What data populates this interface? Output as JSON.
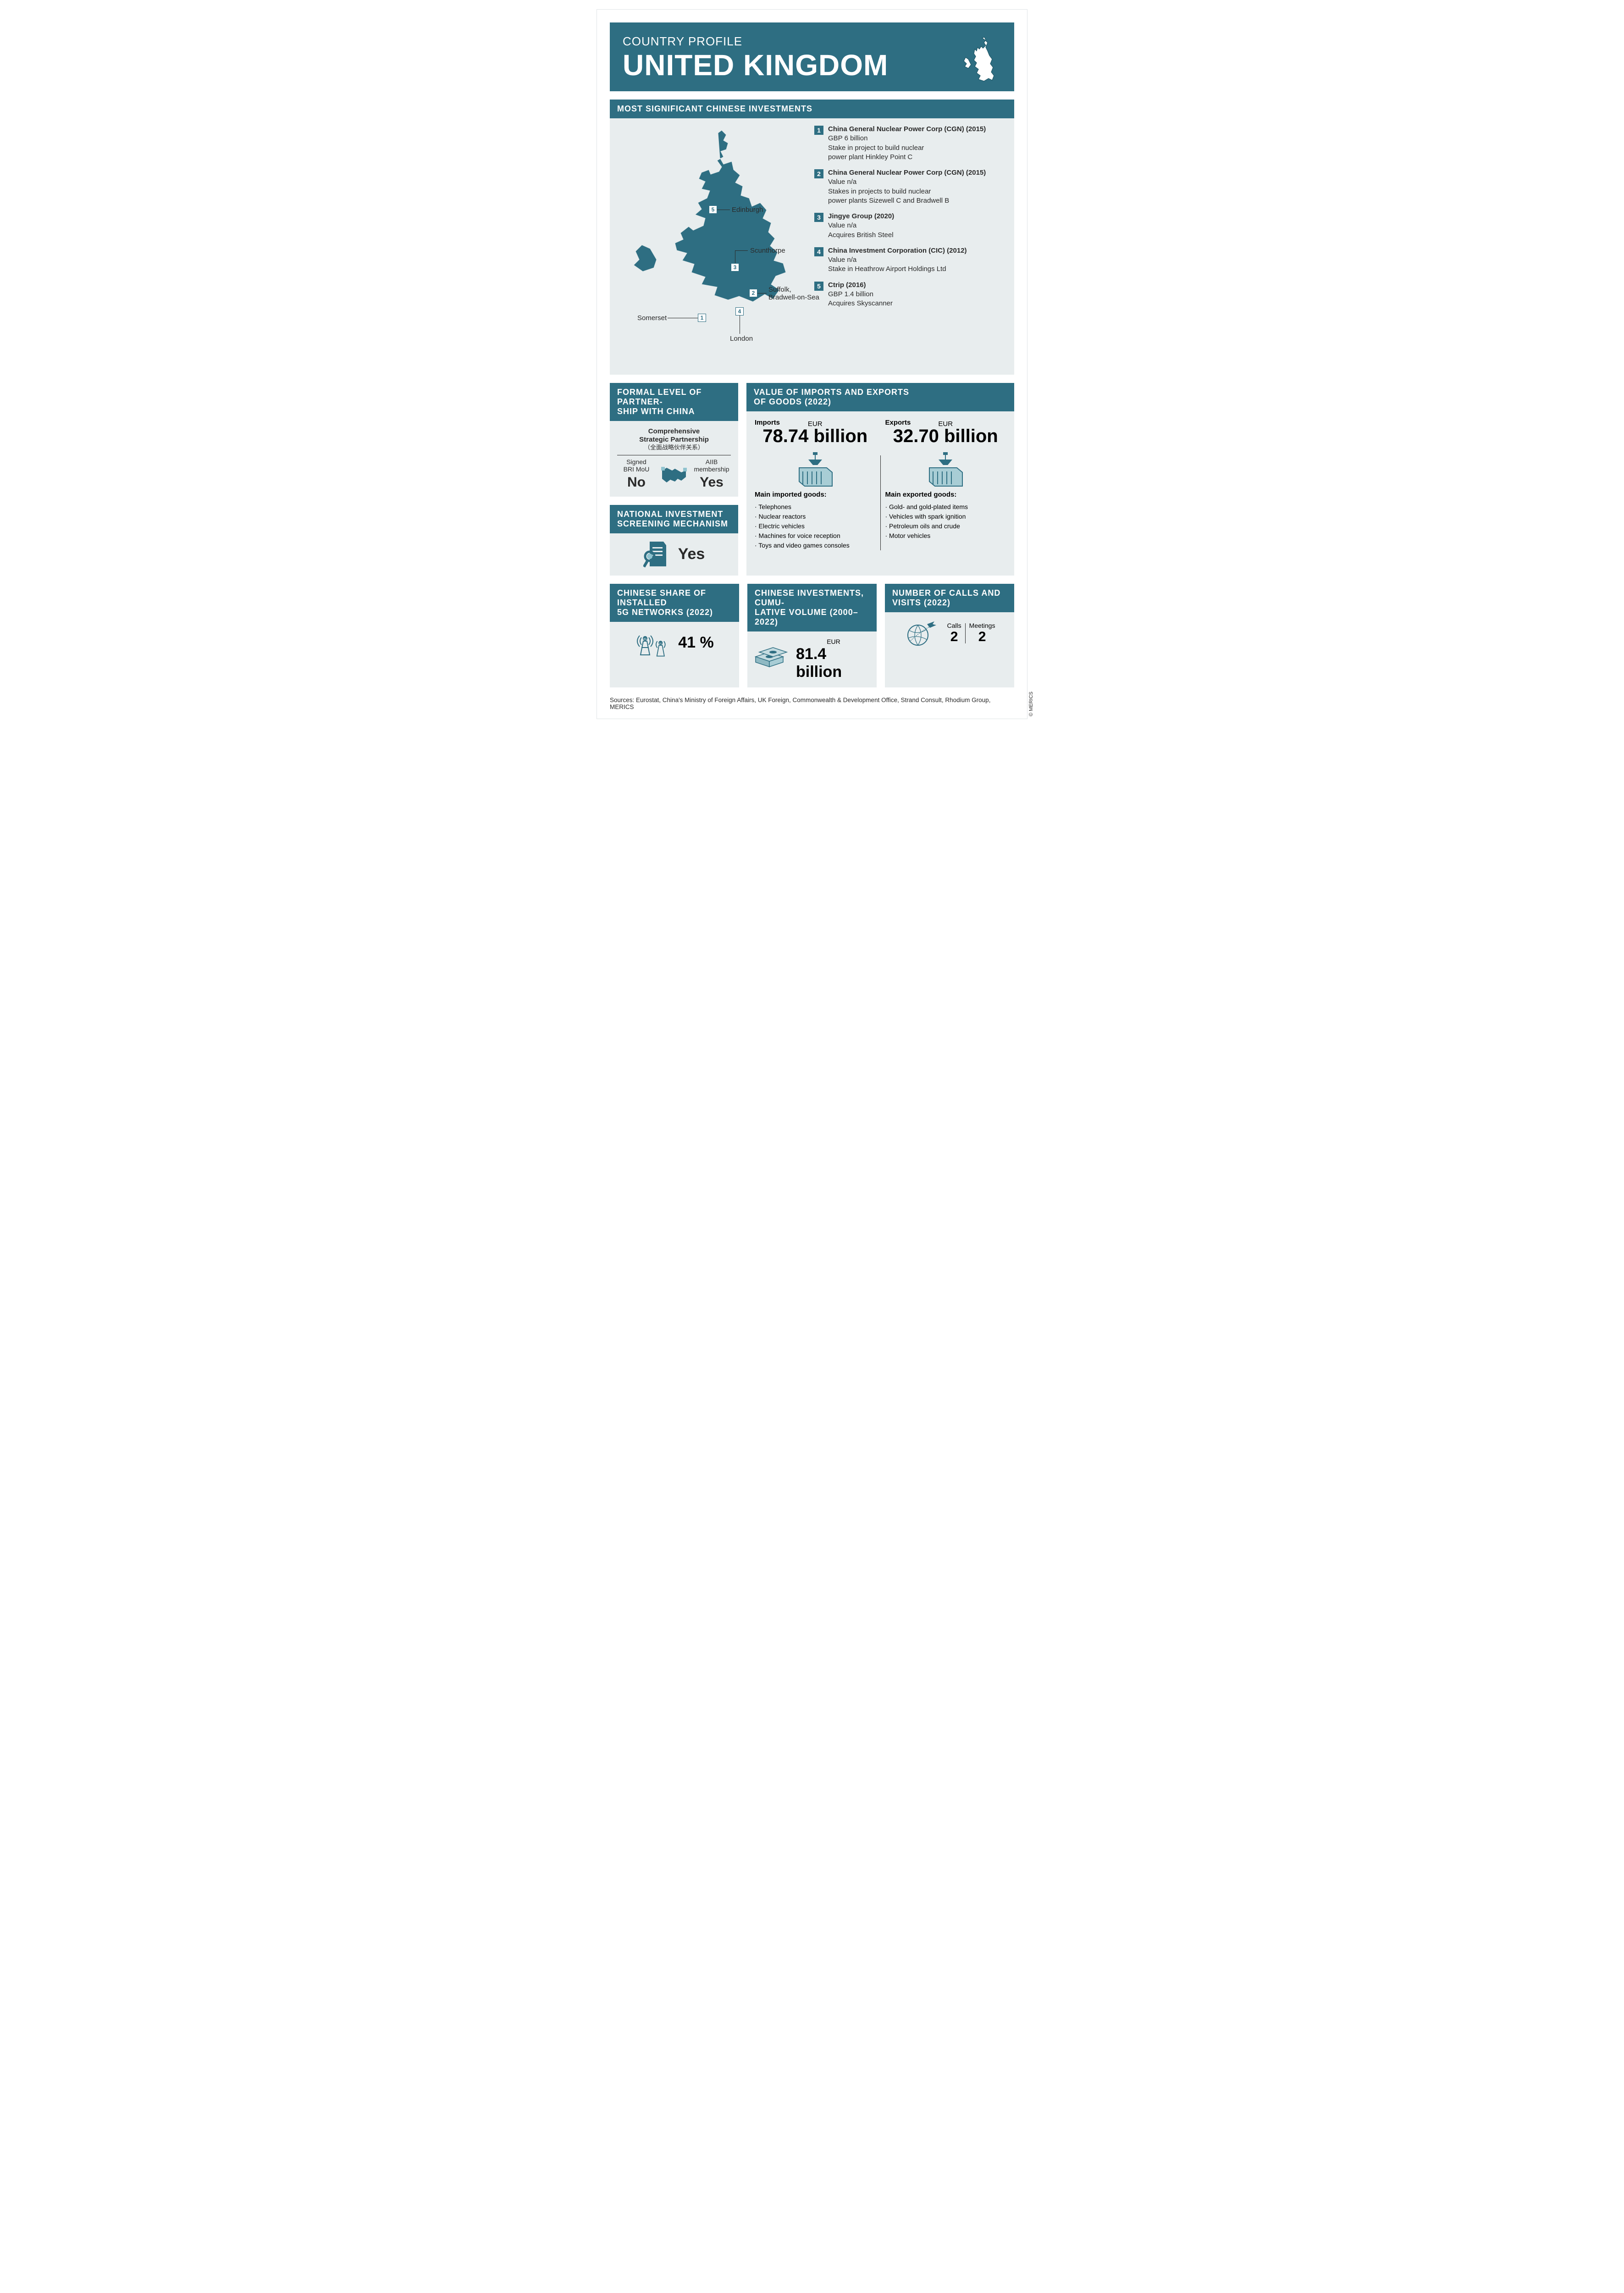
{
  "colors": {
    "primary": "#2e6e82",
    "panel": "#e8edee",
    "text": "#2a2a2a",
    "white": "#ffffff"
  },
  "header": {
    "kicker": "COUNTRY PROFILE",
    "country": "UNITED KINGDOM"
  },
  "investments": {
    "title": "MOST SIGNIFICANT CHINESE INVESTMENTS",
    "map_labels": [
      {
        "city": "Edinburgh"
      },
      {
        "city": "Scunthorpe"
      },
      {
        "city": "Suffolk,\nBradwell-on-Sea"
      },
      {
        "city": "London"
      },
      {
        "city": "Somerset"
      }
    ],
    "items": [
      {
        "num": "1",
        "title": "China General Nuclear Power Corp (CGN) (2015)",
        "lines": [
          "GBP 6 billion",
          "Stake in project to build nuclear",
          "power plant Hinkley Point C"
        ]
      },
      {
        "num": "2",
        "title": "China General Nuclear Power Corp (CGN) (2015)",
        "lines": [
          "Value n/a",
          "Stakes in projects to build nuclear",
          "power plants Sizewell C and Bradwell B"
        ]
      },
      {
        "num": "3",
        "title": "Jingye Group (2020)",
        "lines": [
          "Value n/a",
          "Acquires British Steel"
        ]
      },
      {
        "num": "4",
        "title": "China Investment Corporation (CIC) (2012)",
        "lines": [
          "Value n/a",
          "Stake in Heathrow Airport Holdings Ltd"
        ]
      },
      {
        "num": "5",
        "title": "Ctrip (2016)",
        "lines": [
          "GBP 1.4 billion",
          "Acquires Skyscanner"
        ]
      }
    ]
  },
  "partnership": {
    "title": "FORMAL LEVEL OF PARTNER-\nSHIP WITH CHINA",
    "label_en": "Comprehensive\nStrategic Partnership",
    "label_cn": "（全面战略伙伴关系）",
    "bri_label": "Signed\nBRI MoU",
    "bri_value": "No",
    "aiib_label": "AIIB\nmembership",
    "aiib_value": "Yes"
  },
  "screening": {
    "title": "NATIONAL INVESTMENT\nSCREENING MECHANISM",
    "value": "Yes"
  },
  "trade": {
    "title": "VALUE OF IMPORTS AND EXPORTS\nOF GOODS (2022)",
    "imports": {
      "label": "Imports",
      "currency": "EUR",
      "value": "78.74 billion",
      "goods_label": "Main imported goods:",
      "goods": [
        "Telephones",
        "Nuclear reactors",
        "Electric vehicles",
        "Machines for voice reception",
        "Toys and video games consoles"
      ]
    },
    "exports": {
      "label": "Exports",
      "currency": "EUR",
      "value": "32.70 billion",
      "goods_label": "Main exported goods:",
      "goods": [
        "Gold- and gold-plated items",
        "Vehicles with spark ignition",
        "Petroleum oils and crude",
        "Motor vehicles"
      ]
    }
  },
  "fiveg": {
    "title": "CHINESE SHARE OF INSTALLED\n5G NETWORKS (2022)",
    "value": "41 %"
  },
  "cumulative": {
    "title": "CHINESE INVESTMENTS, CUMU-\nLATIVE VOLUME (2000–2022)",
    "currency": "EUR",
    "value": "81.4 billion"
  },
  "visits": {
    "title": "NUMBER OF CALLS AND\nVISITS (2022)",
    "calls_label": "Calls",
    "calls_value": "2",
    "meetings_label": "Meetings",
    "meetings_value": "2"
  },
  "sources": "Sources: Eurostat, China's Ministry of Foreign Affairs, UK Foreign, Commonwealth & Development Office, Strand Consult, Rhodium Group, MERICS",
  "credit": "© MERICS"
}
